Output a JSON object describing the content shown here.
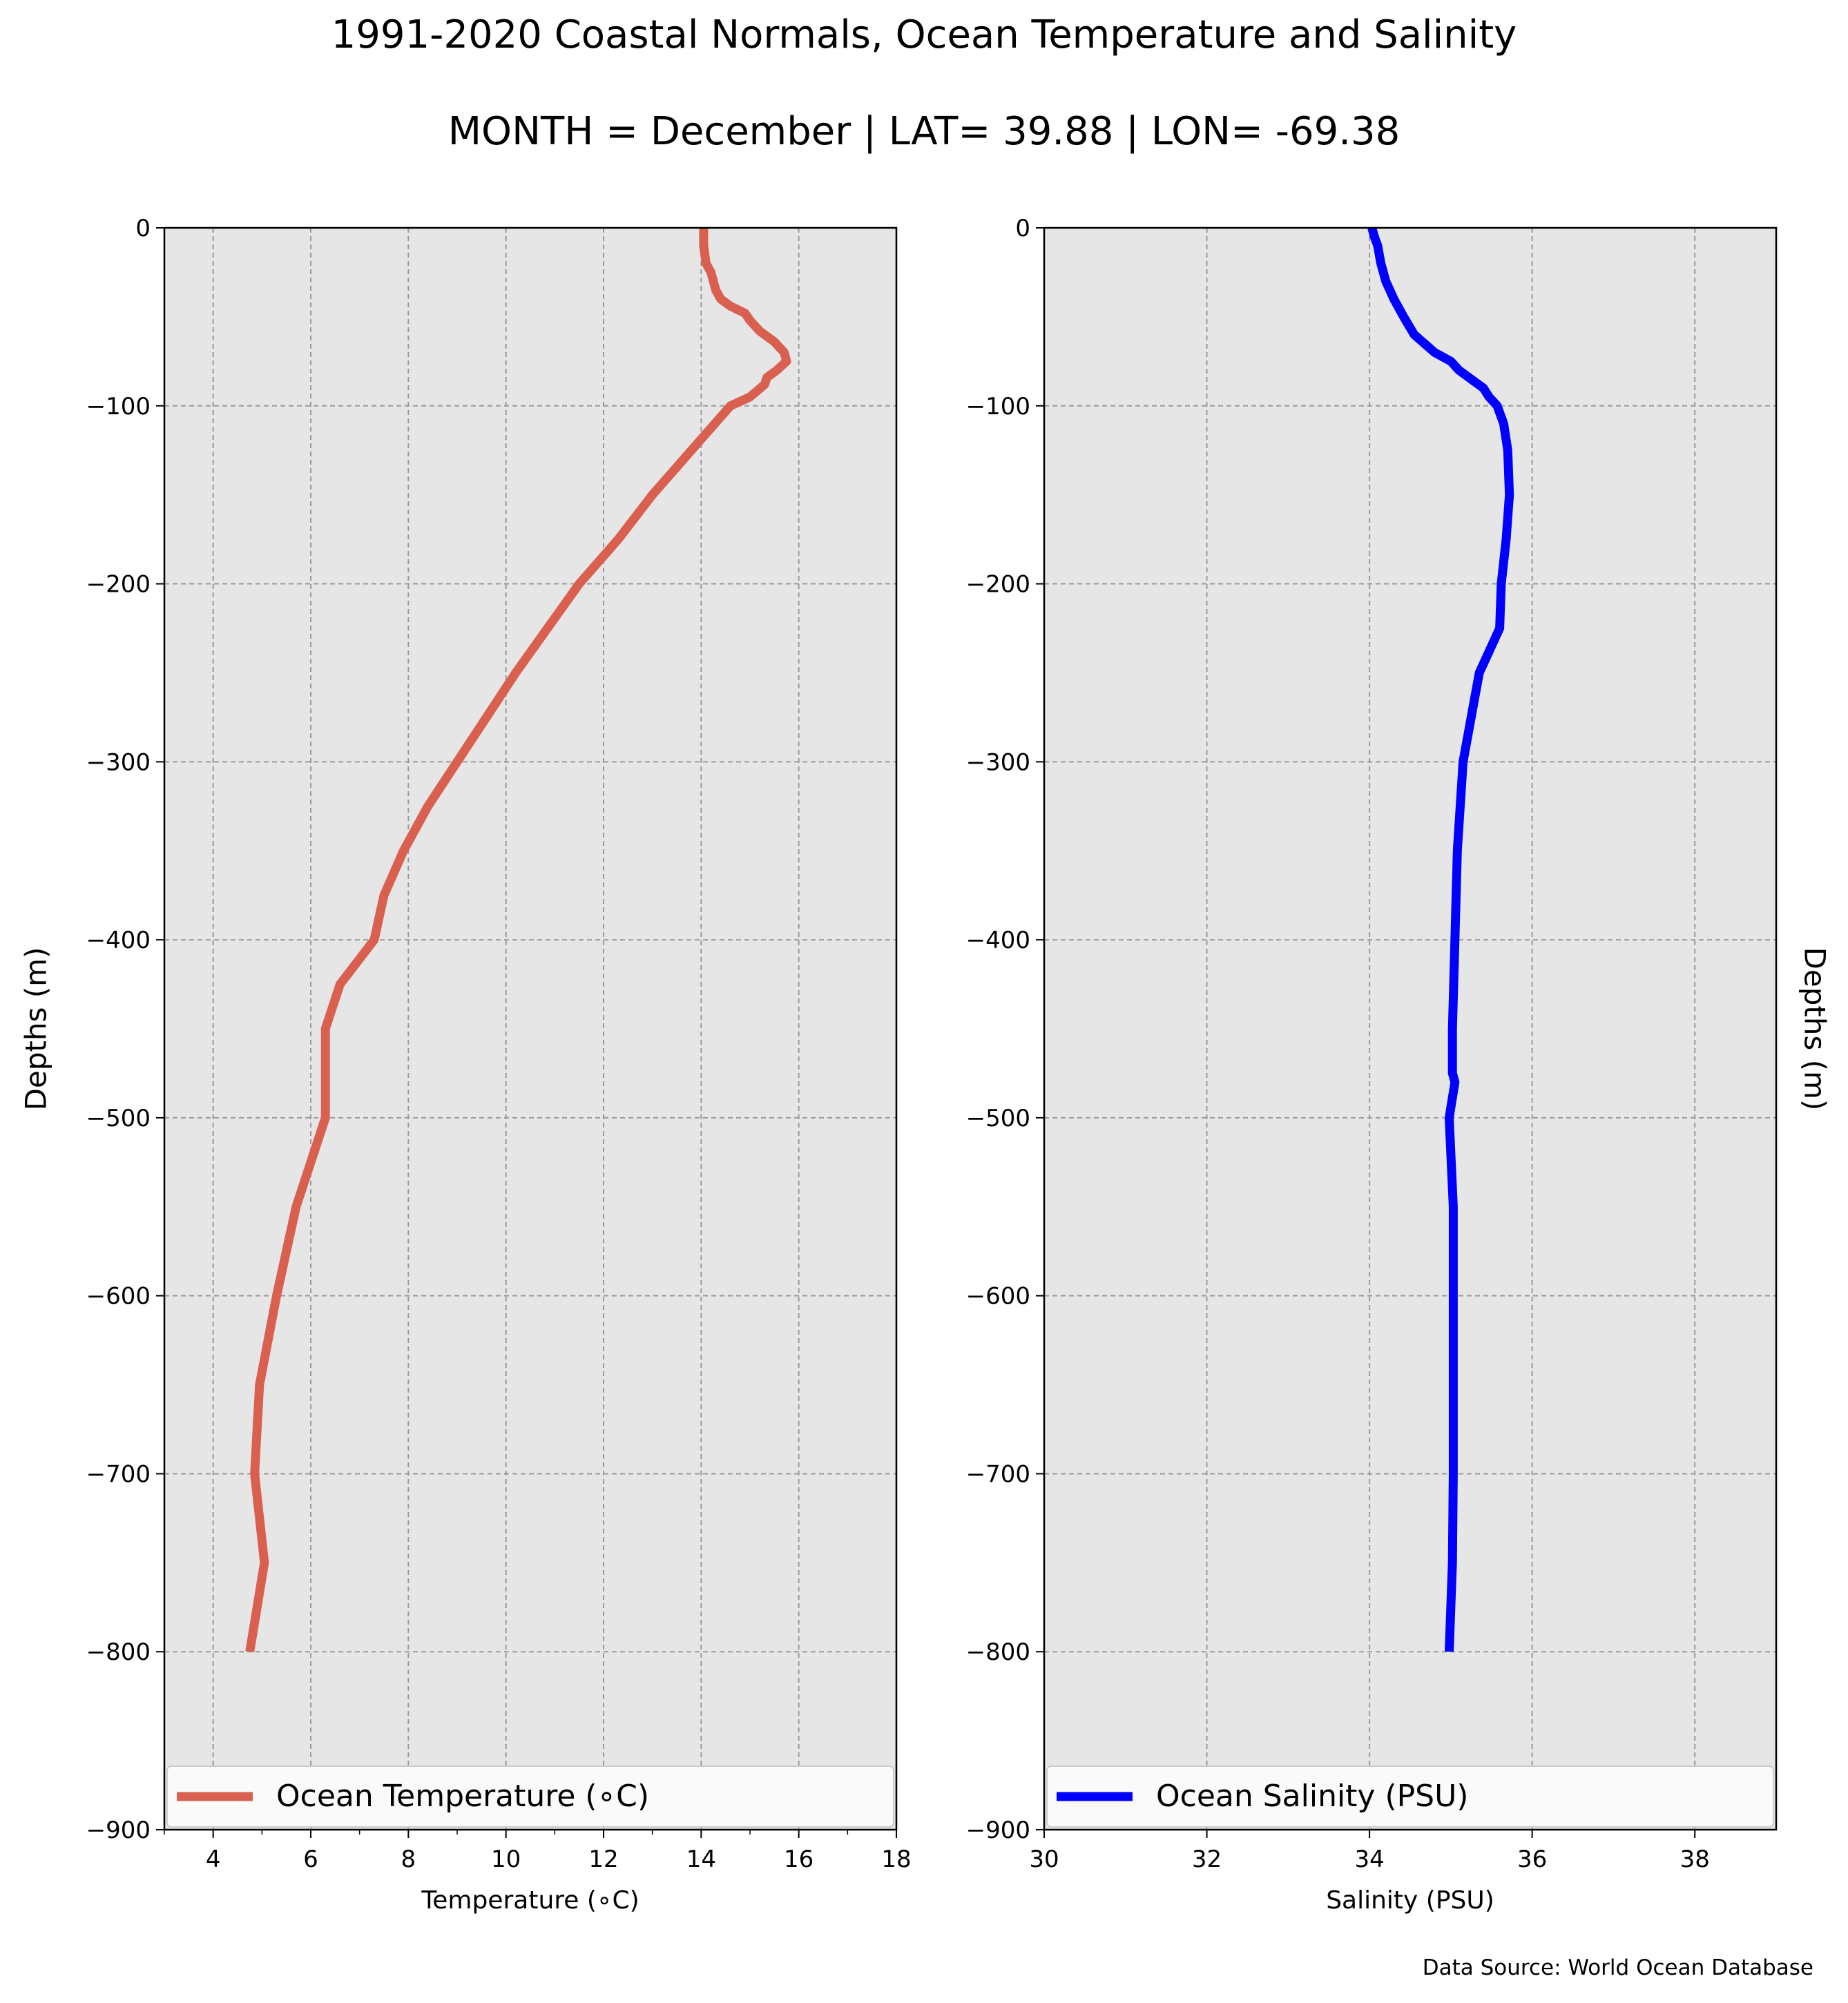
{
  "title": "1991-2020 Coastal Normals, Ocean Temperature and Salinity",
  "subtitle": "MONTH = December | LAT= 39.88 | LON= -69.38",
  "source": "Data Source: World Ocean Database",
  "chart_data": [
    {
      "type": "line",
      "xlabel": "Temperature (∘C)",
      "ylabel": "Depths (m)",
      "xlim": [
        3,
        18
      ],
      "ylim": [
        -900,
        0
      ],
      "xticks": [
        4,
        6,
        8,
        10,
        12,
        14,
        16,
        18
      ],
      "yticks": [
        0,
        -100,
        -200,
        -300,
        -400,
        -500,
        -600,
        -700,
        -800,
        -900
      ],
      "grid": true,
      "legend_position": "bottom",
      "ylabel_side": "left",
      "color": "#D9604F",
      "series": [
        {
          "name": "Ocean Temperature (∘C)",
          "x": [
            14.05,
            14.05,
            14.1,
            14.2,
            14.25,
            14.3,
            14.4,
            14.6,
            14.9,
            15.0,
            15.2,
            15.5,
            15.7,
            15.75,
            15.55,
            15.35,
            15.3,
            15.0,
            14.6,
            13.8,
            13.0,
            12.3,
            11.5,
            10.2,
            9.0,
            8.4,
            7.9,
            7.5,
            7.3,
            6.6,
            6.3,
            6.3,
            6.3,
            5.7,
            5.3,
            4.95,
            4.85,
            5.05,
            4.75
          ],
          "y": [
            0,
            -10,
            -20,
            -25,
            -30,
            -35,
            -40,
            -44,
            -48,
            -52,
            -58,
            -64,
            -70,
            -75,
            -80,
            -84,
            -88,
            -95,
            -100,
            -125,
            -150,
            -175,
            -200,
            -250,
            -300,
            -325,
            -350,
            -375,
            -400,
            -425,
            -450,
            -475,
            -500,
            -550,
            -600,
            -650,
            -700,
            -750,
            -800
          ]
        }
      ]
    },
    {
      "type": "line",
      "xlabel": "Salinity (PSU)",
      "ylabel": "Depths (m)",
      "xlim": [
        30,
        39
      ],
      "ylim": [
        -900,
        0
      ],
      "xticks": [
        30,
        32,
        34,
        36,
        38
      ],
      "yticks": [
        0,
        -100,
        -200,
        -300,
        -400,
        -500,
        -600,
        -700,
        -800,
        -900
      ],
      "grid": true,
      "legend_position": "bottom",
      "ylabel_side": "right",
      "color": "#0000FF",
      "series": [
        {
          "name": "Ocean Salinity (PSU)",
          "x": [
            34.03,
            34.06,
            34.1,
            34.14,
            34.2,
            34.3,
            34.42,
            34.55,
            34.8,
            35.0,
            35.1,
            35.25,
            35.4,
            35.47,
            35.57,
            35.65,
            35.7,
            35.72,
            35.68,
            35.62,
            35.6,
            35.55,
            35.35,
            35.15,
            35.08,
            35.05,
            35.02,
            35.02,
            35.05,
            34.98,
            35.03,
            35.03,
            35.03,
            35.02,
            34.98
          ],
          "y": [
            0,
            -5,
            -10,
            -20,
            -30,
            -40,
            -50,
            -60,
            -70,
            -75,
            -80,
            -85,
            -90,
            -95,
            -100,
            -110,
            -125,
            -150,
            -175,
            -200,
            -225,
            -230,
            -250,
            -300,
            -350,
            -400,
            -450,
            -475,
            -480,
            -500,
            -550,
            -600,
            -700,
            -750,
            -800
          ]
        }
      ]
    }
  ]
}
